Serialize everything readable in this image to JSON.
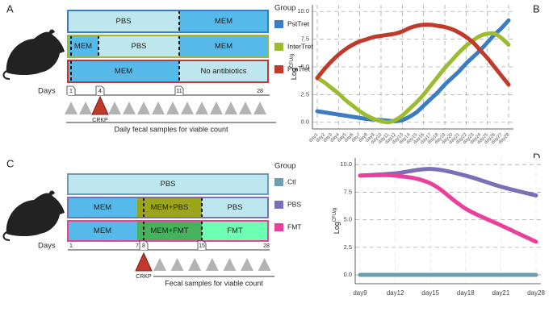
{
  "panels": [
    {
      "label": "A",
      "rows": [
        [
          "PBS",
          "MEM"
        ],
        [
          "MEM",
          "PBS",
          "MEM"
        ],
        [
          "MEM",
          "No antibiotics"
        ]
      ],
      "days_label": "Days",
      "days": [
        "1",
        "4",
        "11",
        "28"
      ],
      "challenge": "CRKP",
      "sampling": "Daily fecal samples for viable count"
    },
    {
      "label": "C",
      "rows": [
        [
          "PBS"
        ],
        [
          "MEM",
          "MEM+PBS",
          "PBS"
        ],
        [
          "MEM",
          "MEM+FMT",
          "FMT"
        ]
      ],
      "days_label": "Days",
      "days": [
        "1",
        "7",
        "8",
        "15",
        "28"
      ],
      "challenge": "CRKP",
      "sampling": "Fecal samples for viable count"
    }
  ],
  "chart_data": [
    {
      "type": "line",
      "panel": "B",
      "legend_title": "Group",
      "ylabel": "Log",
      "ylabel_sup": "CFU/g",
      "categories": [
        "day1",
        "day2",
        "day3",
        "day4",
        "day5",
        "day6",
        "day7",
        "day8",
        "day9",
        "day10",
        "day11",
        "day12",
        "day13",
        "day14",
        "day15",
        "day16",
        "day17",
        "day18",
        "day19",
        "day20",
        "day21",
        "day22",
        "day23",
        "day24",
        "day25",
        "day26",
        "day27",
        "day28"
      ],
      "series": [
        {
          "name": "PstTret",
          "color": "#3b7dbf",
          "values": [
            1.0,
            0.9,
            0.8,
            0.7,
            0.6,
            0.5,
            0.4,
            0.3,
            0.25,
            0.2,
            0.15,
            0.1,
            0.2,
            0.5,
            0.9,
            1.5,
            2.1,
            2.7,
            3.4,
            4.0,
            4.6,
            5.3,
            5.9,
            6.5,
            7.2,
            7.9,
            8.5,
            9.2
          ]
        },
        {
          "name": "InterTret",
          "color": "#9dbb2f",
          "values": [
            4.0,
            3.6,
            3.1,
            2.6,
            2.0,
            1.5,
            1.0,
            0.6,
            0.3,
            0.1,
            0.0,
            0.2,
            0.6,
            1.2,
            1.8,
            2.5,
            3.3,
            4.1,
            4.9,
            5.6,
            6.3,
            6.9,
            7.4,
            7.8,
            8.0,
            8.0,
            7.6,
            7.0
          ]
        },
        {
          "name": "PreTret",
          "color": "#c0392b",
          "values": [
            4.0,
            4.8,
            5.5,
            6.1,
            6.6,
            7.0,
            7.3,
            7.5,
            7.7,
            7.8,
            7.9,
            8.0,
            8.2,
            8.5,
            8.7,
            8.8,
            8.8,
            8.7,
            8.6,
            8.4,
            8.1,
            7.7,
            7.2,
            6.5,
            5.8,
            5.0,
            4.2,
            3.4
          ]
        }
      ],
      "ylim": [
        -0.6,
        10.6
      ],
      "yticks": [
        {
          "value": 0,
          "label": "0.0"
        },
        2.5,
        {
          "value": 5,
          "label": "5.0"
        },
        7.5,
        {
          "value": 10,
          "label": "10.0"
        }
      ],
      "grid": true
    },
    {
      "type": "line",
      "panel": "D",
      "legend_title": "Group",
      "ylabel": "Log",
      "ylabel_sup": "CFU/g",
      "categories": [
        "day9",
        "day12",
        "day15",
        "day18",
        "day21",
        "day28"
      ],
      "series": [
        {
          "name": "Ctl",
          "color": "#6f9db0",
          "values": [
            0,
            0,
            0,
            0,
            0,
            0
          ]
        },
        {
          "name": "PBS",
          "color": "#7b70b8",
          "values": [
            9.0,
            9.2,
            9.6,
            9.0,
            8.0,
            7.2
          ]
        },
        {
          "name": "FMT",
          "color": "#ea3f9b",
          "values": [
            9.0,
            9.0,
            8.3,
            6.0,
            4.5,
            3.0
          ]
        }
      ],
      "ylim": [
        -0.8,
        10.6
      ],
      "yticks": [
        {
          "value": 0,
          "label": "0.0"
        },
        2.5,
        {
          "value": 5,
          "label": "5.0"
        },
        7.5,
        {
          "value": 10,
          "label": "10.0"
        }
      ],
      "grid": true
    }
  ]
}
